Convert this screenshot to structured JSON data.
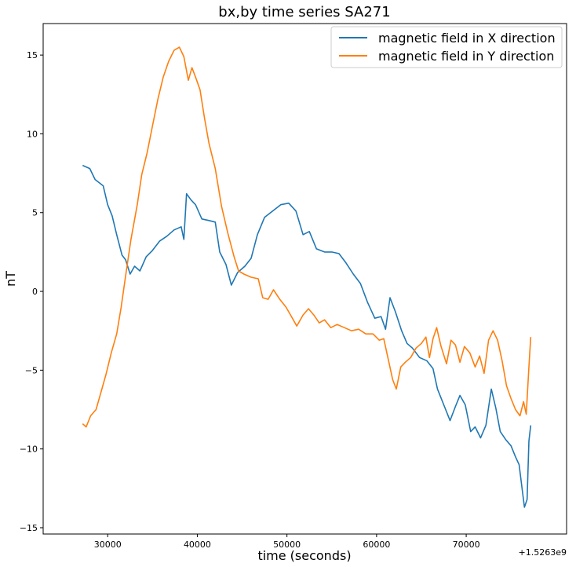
{
  "chart_data": {
    "type": "line",
    "title": "bx,by time series SA271",
    "xlabel": "time (seconds)",
    "ylabel": "nT",
    "x_offset_label": "+1.5263e9",
    "xlim": [
      22800,
      81200
    ],
    "ylim": [
      -15.4,
      17.0
    ],
    "x_ticks": [
      30000,
      40000,
      50000,
      60000,
      70000
    ],
    "y_ticks": [
      -15,
      -10,
      -5,
      0,
      5,
      10,
      15
    ],
    "grid": false,
    "legend_position": "top-right",
    "series": [
      {
        "name": "magnetic field in X direction",
        "color": "#1f77b4",
        "points": [
          [
            27200,
            8.0
          ],
          [
            28000,
            7.8
          ],
          [
            28600,
            7.1
          ],
          [
            29500,
            6.7
          ],
          [
            30000,
            5.5
          ],
          [
            30500,
            4.8
          ],
          [
            31000,
            3.6
          ],
          [
            31600,
            2.3
          ],
          [
            32000,
            2.0
          ],
          [
            32500,
            1.1
          ],
          [
            33000,
            1.6
          ],
          [
            33600,
            1.3
          ],
          [
            34300,
            2.2
          ],
          [
            35000,
            2.6
          ],
          [
            35800,
            3.2
          ],
          [
            36600,
            3.5
          ],
          [
            37400,
            3.9
          ],
          [
            38200,
            4.1
          ],
          [
            38500,
            3.3
          ],
          [
            38800,
            6.2
          ],
          [
            39300,
            5.8
          ],
          [
            39800,
            5.5
          ],
          [
            40500,
            4.6
          ],
          [
            41300,
            4.5
          ],
          [
            42000,
            4.4
          ],
          [
            42500,
            2.5
          ],
          [
            43200,
            1.7
          ],
          [
            43800,
            0.4
          ],
          [
            44500,
            1.2
          ],
          [
            45300,
            1.6
          ],
          [
            46000,
            2.1
          ],
          [
            46700,
            3.6
          ],
          [
            47500,
            4.7
          ],
          [
            48400,
            5.1
          ],
          [
            49300,
            5.5
          ],
          [
            50200,
            5.6
          ],
          [
            51000,
            5.1
          ],
          [
            51800,
            3.6
          ],
          [
            52500,
            3.8
          ],
          [
            53300,
            2.7
          ],
          [
            54200,
            2.5
          ],
          [
            55000,
            2.5
          ],
          [
            55800,
            2.4
          ],
          [
            56600,
            1.8
          ],
          [
            57400,
            1.1
          ],
          [
            58200,
            0.5
          ],
          [
            59000,
            -0.7
          ],
          [
            59800,
            -1.7
          ],
          [
            60500,
            -1.6
          ],
          [
            61000,
            -2.4
          ],
          [
            61500,
            -0.4
          ],
          [
            62100,
            -1.3
          ],
          [
            62800,
            -2.5
          ],
          [
            63400,
            -3.3
          ],
          [
            64000,
            -3.6
          ],
          [
            64800,
            -4.2
          ],
          [
            65600,
            -4.4
          ],
          [
            66300,
            -4.9
          ],
          [
            66800,
            -6.2
          ],
          [
            67500,
            -7.2
          ],
          [
            68200,
            -8.2
          ],
          [
            68800,
            -7.3
          ],
          [
            69300,
            -6.6
          ],
          [
            69900,
            -7.2
          ],
          [
            70500,
            -8.9
          ],
          [
            71000,
            -8.6
          ],
          [
            71600,
            -9.3
          ],
          [
            72200,
            -8.5
          ],
          [
            72800,
            -6.2
          ],
          [
            73300,
            -7.4
          ],
          [
            73800,
            -8.9
          ],
          [
            74400,
            -9.4
          ],
          [
            75000,
            -9.8
          ],
          [
            75500,
            -10.5
          ],
          [
            75900,
            -11.0
          ],
          [
            76300,
            -12.8
          ],
          [
            76500,
            -13.7
          ],
          [
            76800,
            -13.2
          ],
          [
            77000,
            -9.5
          ],
          [
            77200,
            -8.5
          ]
        ]
      },
      {
        "name": "magnetic field in Y direction",
        "color": "#ff7f0e",
        "points": [
          [
            27200,
            -8.4
          ],
          [
            27600,
            -8.6
          ],
          [
            28100,
            -7.9
          ],
          [
            28700,
            -7.5
          ],
          [
            29200,
            -6.5
          ],
          [
            29800,
            -5.3
          ],
          [
            30400,
            -3.9
          ],
          [
            31000,
            -2.7
          ],
          [
            31500,
            -1.0
          ],
          [
            32000,
            1.0
          ],
          [
            32600,
            3.3
          ],
          [
            33300,
            5.5
          ],
          [
            33800,
            7.4
          ],
          [
            34400,
            8.8
          ],
          [
            35000,
            10.5
          ],
          [
            35600,
            12.2
          ],
          [
            36200,
            13.6
          ],
          [
            36800,
            14.6
          ],
          [
            37400,
            15.3
          ],
          [
            38000,
            15.5
          ],
          [
            38500,
            14.9
          ],
          [
            39000,
            13.4
          ],
          [
            39400,
            14.2
          ],
          [
            39800,
            13.6
          ],
          [
            40300,
            12.8
          ],
          [
            40800,
            11.0
          ],
          [
            41300,
            9.4
          ],
          [
            42000,
            7.8
          ],
          [
            42700,
            5.4
          ],
          [
            43400,
            3.7
          ],
          [
            44100,
            2.2
          ],
          [
            44600,
            1.3
          ],
          [
            45200,
            1.1
          ],
          [
            46000,
            0.9
          ],
          [
            46800,
            0.8
          ],
          [
            47300,
            -0.4
          ],
          [
            47900,
            -0.5
          ],
          [
            48500,
            0.1
          ],
          [
            49200,
            -0.5
          ],
          [
            49900,
            -1.0
          ],
          [
            50500,
            -1.6
          ],
          [
            51100,
            -2.2
          ],
          [
            51800,
            -1.5
          ],
          [
            52400,
            -1.1
          ],
          [
            53000,
            -1.5
          ],
          [
            53600,
            -2.0
          ],
          [
            54200,
            -1.8
          ],
          [
            54900,
            -2.3
          ],
          [
            55600,
            -2.1
          ],
          [
            56400,
            -2.3
          ],
          [
            57200,
            -2.5
          ],
          [
            58000,
            -2.4
          ],
          [
            58800,
            -2.7
          ],
          [
            59600,
            -2.7
          ],
          [
            60300,
            -3.1
          ],
          [
            60800,
            -3.0
          ],
          [
            61300,
            -4.3
          ],
          [
            61800,
            -5.6
          ],
          [
            62200,
            -6.2
          ],
          [
            62700,
            -4.8
          ],
          [
            63200,
            -4.5
          ],
          [
            63800,
            -4.2
          ],
          [
            64400,
            -3.6
          ],
          [
            65000,
            -3.3
          ],
          [
            65500,
            -2.9
          ],
          [
            65900,
            -4.2
          ],
          [
            66300,
            -3.0
          ],
          [
            66700,
            -2.3
          ],
          [
            67200,
            -3.5
          ],
          [
            67800,
            -4.6
          ],
          [
            68300,
            -3.1
          ],
          [
            68800,
            -3.4
          ],
          [
            69300,
            -4.5
          ],
          [
            69800,
            -3.5
          ],
          [
            70400,
            -3.9
          ],
          [
            71000,
            -4.8
          ],
          [
            71500,
            -4.1
          ],
          [
            72000,
            -5.2
          ],
          [
            72500,
            -3.1
          ],
          [
            73000,
            -2.5
          ],
          [
            73500,
            -3.1
          ],
          [
            74000,
            -4.4
          ],
          [
            74500,
            -6.0
          ],
          [
            75000,
            -6.8
          ],
          [
            75500,
            -7.5
          ],
          [
            76000,
            -7.9
          ],
          [
            76400,
            -7.0
          ],
          [
            76700,
            -7.8
          ],
          [
            77000,
            -4.8
          ],
          [
            77200,
            -2.9
          ]
        ]
      }
    ]
  }
}
